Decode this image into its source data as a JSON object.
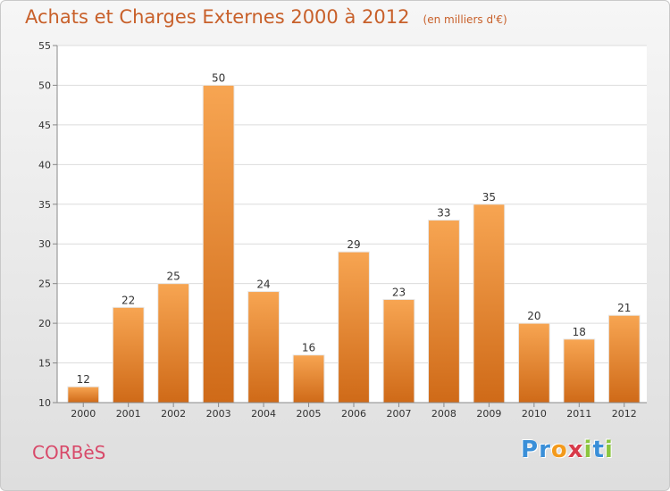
{
  "header": {
    "title": "Achats et Charges Externes 2000 à 2012",
    "unit": "(en milliers d'€)"
  },
  "footer": {
    "commune": "CORBèS",
    "logo_letters": [
      {
        "char": "P",
        "color": "#3a8fd8"
      },
      {
        "char": "r",
        "color": "#3a8fd8"
      },
      {
        "char": "o",
        "color": "#f39a1c"
      },
      {
        "char": "x",
        "color": "#d83a4a"
      },
      {
        "char": "i",
        "color": "#8bc53f"
      },
      {
        "char": "t",
        "color": "#3a8fd8"
      },
      {
        "char": "i",
        "color": "#8bc53f"
      }
    ]
  },
  "colors": {
    "bar_top": "#f7a552",
    "bar_bottom": "#cf6a18",
    "title": "#c8602a",
    "commune": "#d84a6a"
  },
  "chart_data": {
    "type": "bar",
    "categories": [
      "2000",
      "2001",
      "2002",
      "2003",
      "2004",
      "2005",
      "2006",
      "2007",
      "2008",
      "2009",
      "2010",
      "2011",
      "2012"
    ],
    "values": [
      12,
      22,
      25,
      50,
      24,
      16,
      29,
      23,
      33,
      35,
      20,
      18,
      21
    ],
    "ylim": [
      10,
      55
    ],
    "yticks": [
      10,
      15,
      20,
      25,
      30,
      35,
      40,
      45,
      50,
      55
    ],
    "grid": true,
    "legend": "none"
  }
}
